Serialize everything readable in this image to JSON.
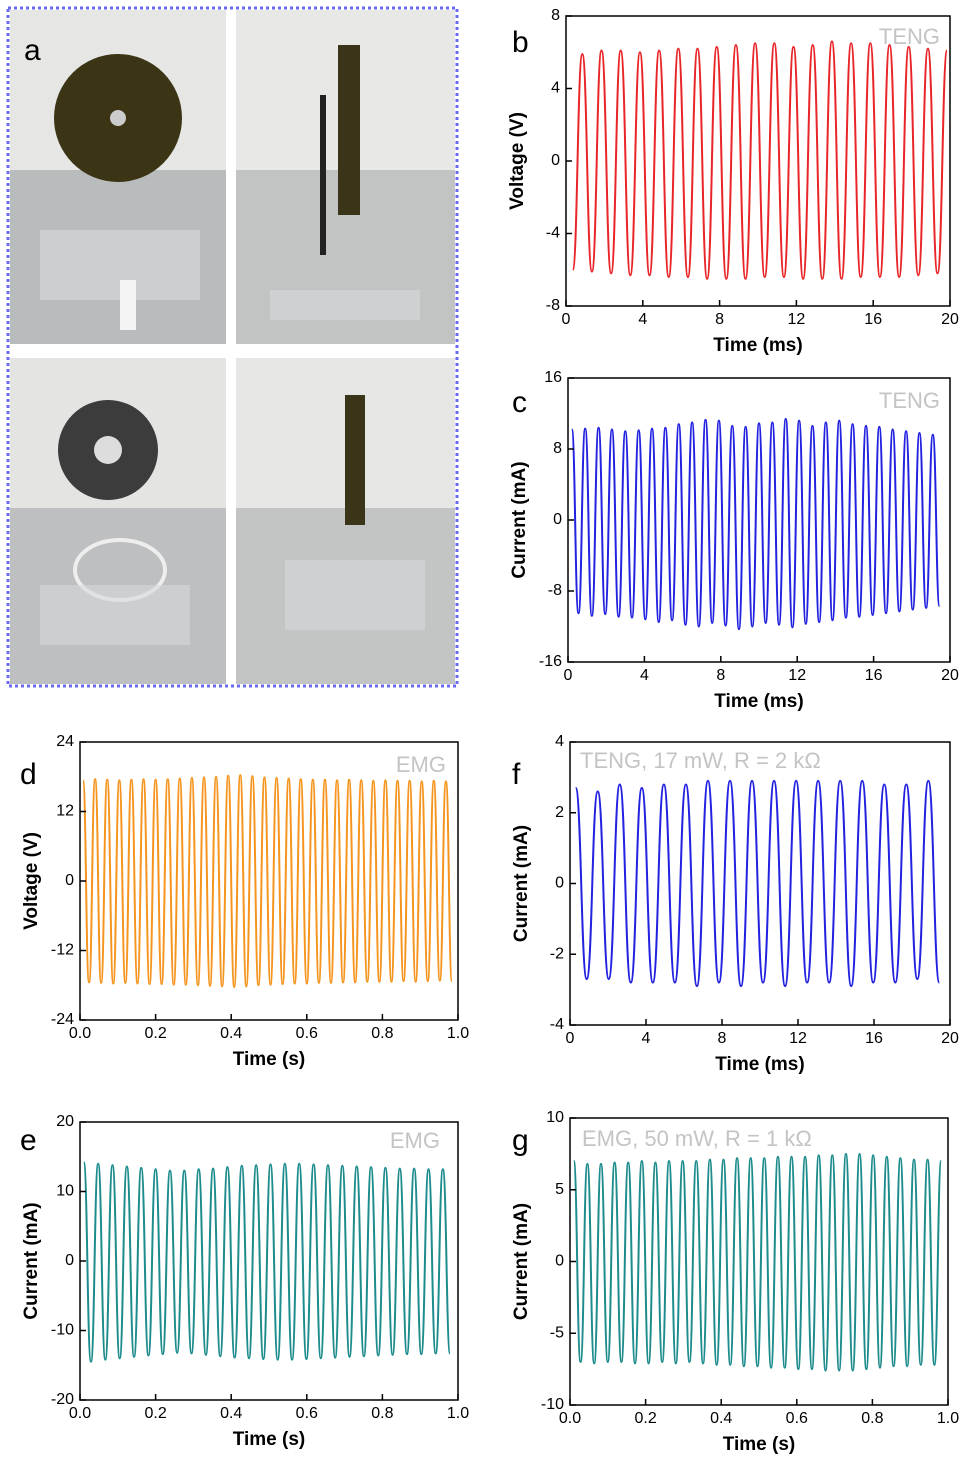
{
  "photo_panel": {
    "label": "a"
  },
  "chart_data": [
    {
      "type": "line",
      "panel_label": "b",
      "annotation": "TENG",
      "x_label": "Time (ms)",
      "y_label": "Voltage (V)",
      "color": "#e8262a",
      "xlim": [
        0,
        20
      ],
      "xticks": [
        0,
        4,
        8,
        12,
        16,
        20
      ],
      "ylim": [
        -8,
        8
      ],
      "yticks": [
        -8,
        -4,
        0,
        4,
        8
      ],
      "x": [
        0.35,
        0.85,
        1.35,
        1.85,
        2.35,
        2.85,
        3.35,
        3.85,
        4.35,
        4.85,
        5.35,
        5.85,
        6.35,
        6.85,
        7.35,
        7.85,
        8.35,
        8.85,
        9.35,
        9.85,
        10.35,
        10.85,
        11.35,
        11.85,
        12.35,
        12.85,
        13.35,
        13.85,
        14.35,
        14.85,
        15.35,
        15.85,
        16.35,
        16.85,
        17.35,
        17.85,
        18.35,
        18.85,
        19.35,
        19.85
      ],
      "values": [
        -6.0,
        5.9,
        -6.1,
        6.1,
        -6.2,
        6.1,
        -6.3,
        6.0,
        -6.3,
        6.1,
        -6.4,
        6.2,
        -6.4,
        6.2,
        -6.5,
        6.3,
        -6.5,
        6.4,
        -6.5,
        6.5,
        -6.4,
        6.5,
        -6.4,
        6.3,
        -6.5,
        6.4,
        -6.5,
        6.6,
        -6.5,
        6.5,
        -6.4,
        6.5,
        -6.4,
        6.4,
        -6.4,
        6.3,
        -6.3,
        6.2,
        -6.2,
        6.1
      ]
    },
    {
      "type": "line",
      "panel_label": "c",
      "annotation": "TENG",
      "x_label": "Time (ms)",
      "y_label": "Current (mA)",
      "color": "#2222e0",
      "xlim": [
        0,
        20
      ],
      "xticks": [
        0,
        4,
        8,
        12,
        16,
        20
      ],
      "ylim": [
        -16,
        16
      ],
      "yticks": [
        -16,
        -8,
        0,
        8,
        16
      ],
      "x": [
        0.2,
        0.55,
        0.9,
        1.25,
        1.6,
        1.95,
        2.3,
        2.65,
        3.0,
        3.35,
        3.7,
        4.05,
        4.4,
        4.75,
        5.1,
        5.45,
        5.8,
        6.15,
        6.5,
        6.85,
        7.2,
        7.55,
        7.9,
        8.25,
        8.6,
        8.95,
        9.3,
        9.65,
        10.0,
        10.35,
        10.7,
        11.05,
        11.4,
        11.75,
        12.1,
        12.45,
        12.8,
        13.15,
        13.5,
        13.85,
        14.2,
        14.55,
        14.9,
        15.25,
        15.6,
        15.95,
        16.3,
        16.65,
        17.0,
        17.35,
        17.7,
        18.05,
        18.4,
        18.75,
        19.1,
        19.45
      ],
      "values": [
        10.2,
        -10.5,
        10.3,
        -10.8,
        10.4,
        -10.6,
        10.2,
        -10.9,
        10.0,
        -11.0,
        10.1,
        -11.2,
        10.3,
        -11.5,
        10.4,
        -11.3,
        10.8,
        -11.8,
        11.0,
        -12.0,
        11.3,
        -11.6,
        11.2,
        -11.9,
        10.6,
        -12.3,
        10.5,
        -12.0,
        10.9,
        -11.6,
        11.0,
        -11.8,
        11.4,
        -12.1,
        11.2,
        -11.7,
        10.6,
        -11.5,
        11.0,
        -11.3,
        11.2,
        -11.0,
        10.8,
        -10.9,
        10.6,
        -10.7,
        10.5,
        -10.5,
        10.2,
        -10.3,
        10.0,
        -10.1,
        9.8,
        -9.9,
        9.6,
        -9.7
      ]
    },
    {
      "type": "line",
      "panel_label": "d",
      "annotation": "EMG",
      "x_label": "Time (s)",
      "y_label": "Voltage (V)",
      "color": "#f5951f",
      "xlim": [
        0,
        1
      ],
      "xticks": [
        {
          "value": 0,
          "label": "0.0"
        },
        0.2,
        0.4,
        0.6,
        0.8,
        {
          "value": 1,
          "label": "1.0"
        }
      ],
      "ylim": [
        -24,
        24
      ],
      "yticks": [
        -24,
        -12,
        0,
        12,
        24
      ],
      "x": [
        0.008,
        0.024,
        0.04,
        0.056,
        0.072,
        0.088,
        0.104,
        0.12,
        0.136,
        0.152,
        0.168,
        0.184,
        0.2,
        0.216,
        0.232,
        0.248,
        0.264,
        0.28,
        0.296,
        0.312,
        0.328,
        0.344,
        0.36,
        0.376,
        0.392,
        0.408,
        0.424,
        0.44,
        0.456,
        0.472,
        0.488,
        0.504,
        0.52,
        0.536,
        0.552,
        0.568,
        0.584,
        0.6,
        0.616,
        0.632,
        0.648,
        0.664,
        0.68,
        0.696,
        0.712,
        0.728,
        0.744,
        0.76,
        0.776,
        0.792,
        0.808,
        0.824,
        0.84,
        0.856,
        0.872,
        0.888,
        0.904,
        0.92,
        0.936,
        0.952,
        0.968,
        0.984
      ],
      "values": [
        17.3,
        -17.5,
        17.6,
        -17.6,
        17.5,
        -17.7,
        17.4,
        -17.6,
        17.5,
        -17.7,
        17.6,
        -17.8,
        17.5,
        -17.8,
        17.6,
        -17.9,
        17.7,
        -17.9,
        17.8,
        -18.0,
        17.9,
        -18.1,
        18.0,
        -18.2,
        18.2,
        -18.3,
        18.3,
        -18.2,
        18.1,
        -18.0,
        17.9,
        -17.9,
        17.8,
        -17.8,
        17.7,
        -17.7,
        17.6,
        -17.7,
        17.5,
        -17.6,
        17.5,
        -17.6,
        17.4,
        -17.5,
        17.5,
        -17.5,
        17.4,
        -17.4,
        17.3,
        -17.4,
        17.4,
        -17.4,
        17.3,
        -17.3,
        17.3,
        -17.4,
        17.2,
        -17.3,
        17.3,
        -17.2,
        17.2,
        -17.3
      ]
    },
    {
      "type": "line",
      "panel_label": "f",
      "annotation": "TENG, 17 mW, R = 2 kΩ",
      "x_label": "Time (ms)",
      "y_label": "Current (mA)",
      "color": "#2222e0",
      "xlim": [
        0,
        20
      ],
      "xticks": [
        0,
        4,
        8,
        12,
        16,
        20
      ],
      "ylim": [
        -4,
        4
      ],
      "yticks": [
        -4,
        -2,
        0,
        2,
        4
      ],
      "x": [
        0.3,
        0.88,
        1.46,
        2.04,
        2.62,
        3.2,
        3.78,
        4.36,
        4.94,
        5.52,
        6.1,
        6.68,
        7.26,
        7.84,
        8.42,
        9.0,
        9.58,
        10.16,
        10.74,
        11.32,
        11.9,
        12.48,
        13.06,
        13.64,
        14.22,
        14.8,
        15.38,
        15.96,
        16.54,
        17.12,
        17.7,
        18.28,
        18.86,
        19.44
      ],
      "values": [
        2.7,
        -2.7,
        2.6,
        -2.7,
        2.8,
        -2.8,
        2.7,
        -2.8,
        2.8,
        -2.8,
        2.8,
        -2.9,
        2.9,
        -2.8,
        2.9,
        -2.9,
        2.9,
        -2.8,
        2.9,
        -2.9,
        2.9,
        -2.8,
        2.9,
        -2.8,
        2.9,
        -2.9,
        2.9,
        -2.8,
        2.8,
        -2.8,
        2.8,
        -2.7,
        2.9,
        -2.8
      ]
    },
    {
      "type": "line",
      "panel_label": "e",
      "annotation": "EMG",
      "x_label": "Time (s)",
      "y_label": "Current (mA)",
      "color": "#1e8c8c",
      "xlim": [
        0,
        1
      ],
      "xticks": [
        {
          "value": 0,
          "label": "0.0"
        },
        0.2,
        0.4,
        0.6,
        0.8,
        {
          "value": 1,
          "label": "1.0"
        }
      ],
      "ylim": [
        -20,
        20
      ],
      "yticks": [
        -20,
        -10,
        0,
        10,
        20
      ],
      "x": [
        0.01,
        0.029,
        0.048,
        0.067,
        0.086,
        0.105,
        0.124,
        0.143,
        0.162,
        0.181,
        0.2,
        0.219,
        0.238,
        0.257,
        0.276,
        0.295,
        0.314,
        0.333,
        0.352,
        0.371,
        0.39,
        0.409,
        0.428,
        0.447,
        0.466,
        0.485,
        0.504,
        0.523,
        0.542,
        0.561,
        0.58,
        0.599,
        0.618,
        0.637,
        0.656,
        0.675,
        0.694,
        0.713,
        0.732,
        0.751,
        0.77,
        0.789,
        0.808,
        0.827,
        0.846,
        0.865,
        0.884,
        0.903,
        0.922,
        0.941,
        0.96,
        0.979
      ],
      "values": [
        14.2,
        -14.5,
        14.0,
        -14.2,
        13.8,
        -14.0,
        13.6,
        -13.8,
        13.4,
        -13.6,
        13.2,
        -13.4,
        13.0,
        -13.2,
        13.0,
        -13.3,
        13.2,
        -13.5,
        13.3,
        -13.7,
        13.5,
        -13.9,
        13.7,
        -14.0,
        13.8,
        -14.1,
        13.9,
        -14.2,
        14.0,
        -14.2,
        14.0,
        -14.1,
        13.9,
        -14.0,
        13.8,
        -13.9,
        13.7,
        -13.8,
        13.6,
        -13.7,
        13.5,
        -13.6,
        13.4,
        -13.5,
        13.3,
        -13.4,
        13.3,
        -13.4,
        13.2,
        -13.3,
        13.2,
        -13.3
      ]
    },
    {
      "type": "line",
      "panel_label": "g",
      "annotation": "EMG, 50 mW, R = 1 kΩ",
      "x_label": "Time (s)",
      "y_label": "Current (mA)",
      "color": "#1e8c8c",
      "xlim": [
        0,
        1
      ],
      "xticks": [
        {
          "value": 0,
          "label": "0.0"
        },
        0.2,
        0.4,
        0.6,
        0.8,
        {
          "value": 1,
          "label": "1.0"
        }
      ],
      "ylim": [
        -10,
        10
      ],
      "yticks": [
        -10,
        -5,
        0,
        5,
        10
      ],
      "x": [
        0.01,
        0.028,
        0.046,
        0.064,
        0.082,
        0.1,
        0.118,
        0.136,
        0.154,
        0.172,
        0.19,
        0.208,
        0.226,
        0.244,
        0.262,
        0.28,
        0.298,
        0.316,
        0.334,
        0.352,
        0.37,
        0.388,
        0.406,
        0.424,
        0.442,
        0.46,
        0.478,
        0.496,
        0.514,
        0.532,
        0.55,
        0.568,
        0.586,
        0.604,
        0.622,
        0.64,
        0.658,
        0.676,
        0.694,
        0.712,
        0.73,
        0.748,
        0.766,
        0.784,
        0.802,
        0.82,
        0.838,
        0.856,
        0.874,
        0.892,
        0.91,
        0.928,
        0.946,
        0.964,
        0.982
      ],
      "values": [
        7.0,
        -7.0,
        6.8,
        -7.1,
        6.8,
        -7.0,
        6.9,
        -7.0,
        6.9,
        -7.1,
        7.0,
        -7.1,
        6.9,
        -7.0,
        7.0,
        -7.1,
        7.0,
        -7.0,
        7.0,
        -7.1,
        7.1,
        -7.2,
        7.1,
        -7.2,
        7.2,
        -7.3,
        7.2,
        -7.3,
        7.2,
        -7.4,
        7.3,
        -7.4,
        7.3,
        -7.5,
        7.3,
        -7.5,
        7.4,
        -7.6,
        7.4,
        -7.6,
        7.5,
        -7.6,
        7.5,
        -7.5,
        7.4,
        -7.4,
        7.3,
        -7.3,
        7.2,
        -7.3,
        7.1,
        -7.2,
        7.1,
        -7.2,
        7.0
      ]
    }
  ]
}
